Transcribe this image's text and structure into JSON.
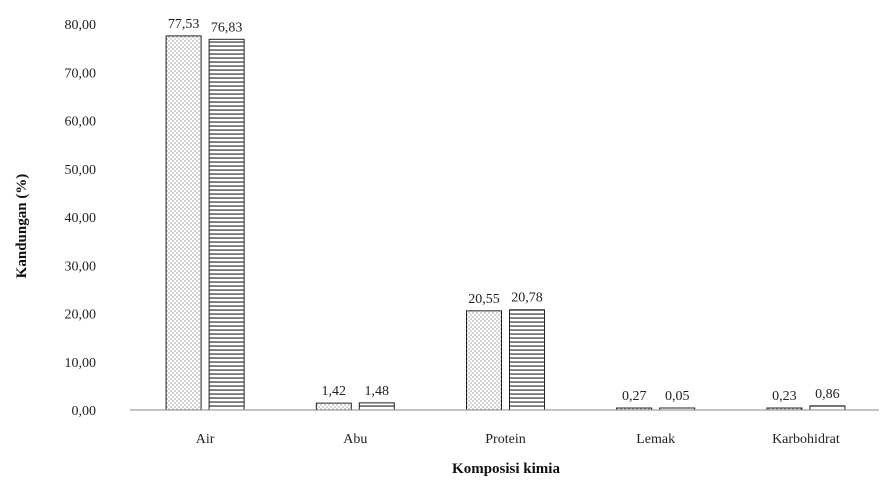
{
  "chart_data": {
    "type": "bar",
    "title": "",
    "xlabel": "Komposisi kimia",
    "ylabel": "Kandungan (%)",
    "ylim": [
      0,
      80
    ],
    "y_tick_step": 10,
    "y_ticks": [
      "0,00",
      "10,00",
      "20,00",
      "30,00",
      "40,00",
      "50,00",
      "60,00",
      "70,00",
      "80,00"
    ],
    "grid": false,
    "legend": "none",
    "categories": [
      "Air",
      "Abu",
      "Protein",
      "Lemak",
      "Karbohidrat"
    ],
    "series": [
      {
        "pattern": "dotted",
        "values": [
          77.53,
          1.42,
          20.55,
          0.27,
          0.23
        ],
        "labels": [
          "77,53",
          "1,42",
          "20,55",
          "0,27",
          "0,23"
        ]
      },
      {
        "pattern": "horizontal-lines",
        "values": [
          76.83,
          1.48,
          20.78,
          0.05,
          0.86
        ],
        "labels": [
          "76,83",
          "1,48",
          "20,78",
          "0,05",
          "0,86"
        ]
      }
    ],
    "colors": {
      "bar_fill": "#ffffff",
      "bar_stroke": "#222222",
      "axis": "#888888",
      "text": "#222222"
    }
  }
}
